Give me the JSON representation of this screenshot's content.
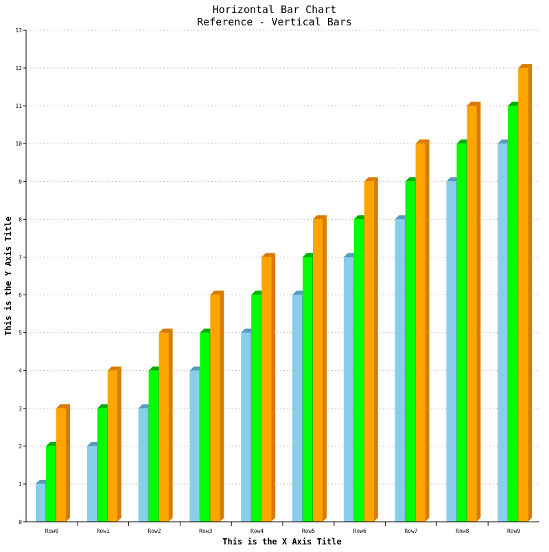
{
  "chart_data": {
    "type": "bar",
    "title": "Horizontal Bar Chart",
    "subtitle": "Reference - Vertical Bars",
    "xlabel": "This is the X Axis Title",
    "ylabel": "This is the Y Axis Title",
    "categories": [
      "Row0",
      "Row1",
      "Row2",
      "Row3",
      "Row4",
      "Row5",
      "Row6",
      "Row7",
      "Row8",
      "Row9"
    ],
    "series": [
      {
        "values": [
          1,
          2,
          3,
          4,
          5,
          6,
          7,
          8,
          9,
          10
        ],
        "color": "#87ceeb",
        "side_color": "#5b9bbd"
      },
      {
        "values": [
          2,
          3,
          4,
          5,
          6,
          7,
          8,
          9,
          10,
          11
        ],
        "color": "#00ff00",
        "side_color": "#00b000"
      },
      {
        "values": [
          3,
          4,
          5,
          6,
          7,
          8,
          9,
          10,
          11,
          12
        ],
        "color": "#ffa500",
        "side_color": "#d97b00"
      }
    ],
    "ylim": [
      0,
      13
    ],
    "yticks": [
      "0",
      "1",
      "2",
      "3",
      "4",
      "5",
      "6",
      "7",
      "8",
      "9",
      "10",
      "11",
      "12",
      "13"
    ],
    "grid": true,
    "style": "3d"
  }
}
